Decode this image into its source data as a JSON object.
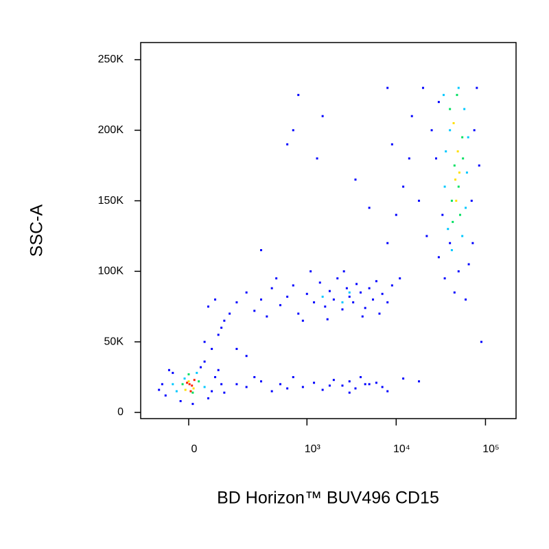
{
  "chart_data": {
    "type": "scatter",
    "x_label": "BD Horizon™ BUV496 CD15",
    "y_label": "SSC-A",
    "xscale": "biexponential",
    "xlim": [
      -150,
      220000
    ],
    "ylim": [
      -4400,
      262144
    ],
    "xticks": [
      0,
      {
        "value": 1000,
        "label": "10³"
      },
      {
        "value": 10000,
        "label": "10⁴"
      },
      {
        "value": 100000,
        "label": "10⁵"
      }
    ],
    "yticks": [
      0,
      {
        "value": 50000,
        "label": "50K"
      },
      {
        "value": 100000,
        "label": "100K"
      },
      {
        "value": 150000,
        "label": "150K"
      },
      {
        "value": 200000,
        "label": "200K"
      },
      {
        "value": 250000,
        "label": "250K"
      }
    ],
    "series": [
      {
        "color": "#0000ff",
        "x": [
          -60,
          -40,
          -70,
          50,
          70,
          30,
          -20,
          60,
          90,
          -50,
          40,
          100,
          10,
          -80,
          80,
          150,
          200,
          300,
          400,
          500,
          700,
          900,
          1200,
          1500,
          2000,
          2500,
          3000,
          3500,
          4000,
          5000,
          6000,
          8000,
          12000,
          18000,
          250,
          600,
          1800,
          4500,
          7000,
          3000,
          60,
          80,
          100,
          50,
          70,
          120,
          90,
          40,
          150,
          200,
          150,
          200,
          250,
          300,
          400,
          500,
          600,
          700,
          800,
          1000,
          1200,
          1400,
          1600,
          1800,
          2000,
          2200,
          2500,
          2800,
          3000,
          3300,
          3600,
          4000,
          4500,
          5000,
          5500,
          6000,
          7000,
          8000,
          9000,
          350,
          900,
          1700,
          2600,
          4200,
          6500,
          11000,
          450,
          1100,
          8000,
          10000,
          12000,
          9000,
          15000,
          20000,
          14000,
          18000,
          25000,
          22000,
          8000,
          5000,
          600,
          700,
          1500,
          800,
          1300,
          3500,
          300,
          30000,
          35000,
          50000,
          65000,
          70000,
          75000,
          80000,
          28000,
          30000,
          33000,
          40000,
          72000,
          85000,
          45000,
          60000,
          90000
        ],
        "values": [
          12000,
          28000,
          20000,
          10000,
          25000,
          32000,
          8000,
          15000,
          20000,
          30000,
          36000,
          14000,
          6000,
          16000,
          30000,
          20000,
          18000,
          22000,
          15000,
          20000,
          25000,
          18000,
          21000,
          16000,
          23000,
          19000,
          22000,
          17000,
          25000,
          20000,
          21000,
          15000,
          24000,
          22000,
          25000,
          17000,
          19000,
          20000,
          18000,
          14000,
          45000,
          55000,
          65000,
          75000,
          80000,
          70000,
          60000,
          50000,
          45000,
          40000,
          78000,
          85000,
          72000,
          80000,
          88000,
          76000,
          82000,
          90000,
          70000,
          84000,
          78000,
          92000,
          75000,
          86000,
          80000,
          95000,
          73000,
          88000,
          82000,
          78000,
          91000,
          85000,
          74000,
          88000,
          80000,
          93000,
          84000,
          78000,
          90000,
          68000,
          65000,
          66000,
          100000,
          68000,
          70000,
          95000,
          95000,
          100000,
          120000,
          140000,
          160000,
          190000,
          210000,
          230000,
          180000,
          150000,
          200000,
          125000,
          230000,
          145000,
          190000,
          200000,
          210000,
          225000,
          180000,
          165000,
          115000,
          110000,
          95000,
          100000,
          105000,
          150000,
          200000,
          230000,
          180000,
          220000,
          140000,
          120000,
          120000,
          175000,
          85000,
          80000,
          50000
        ]
      },
      {
        "color": "#00c8ff",
        "x": [
          -30,
          20,
          -10,
          40,
          -40,
          38000,
          55000,
          35000,
          62000,
          40000,
          58000,
          36000,
          50000,
          42000,
          60000,
          34000,
          64000,
          1500,
          3000,
          2500
        ],
        "values": [
          15000,
          28000,
          24000,
          18000,
          20000,
          130000,
          125000,
          160000,
          170000,
          200000,
          215000,
          185000,
          230000,
          115000,
          145000,
          225000,
          195000,
          82000,
          85000,
          78000
        ]
      },
      {
        "color": "#00e060",
        "x": [
          -15,
          10,
          25,
          0,
          42000,
          52000,
          45000,
          55000,
          40000,
          48000,
          50000,
          43000,
          56000
        ],
        "values": [
          20000,
          14000,
          22000,
          27000,
          150000,
          140000,
          175000,
          195000,
          215000,
          225000,
          160000,
          135000,
          180000
        ]
      },
      {
        "color": "#ffe000",
        "x": [
          0,
          12,
          -8,
          46000,
          49000,
          44000,
          51000,
          47000
        ],
        "values": [
          22000,
          17000,
          16000,
          165000,
          185000,
          205000,
          170000,
          150000
        ]
      },
      {
        "color": "#ff2000",
        "x": [
          2,
          8,
          -4,
          5,
          14
        ],
        "values": [
          20000,
          19000,
          21000,
          15000,
          23000
        ]
      }
    ]
  }
}
